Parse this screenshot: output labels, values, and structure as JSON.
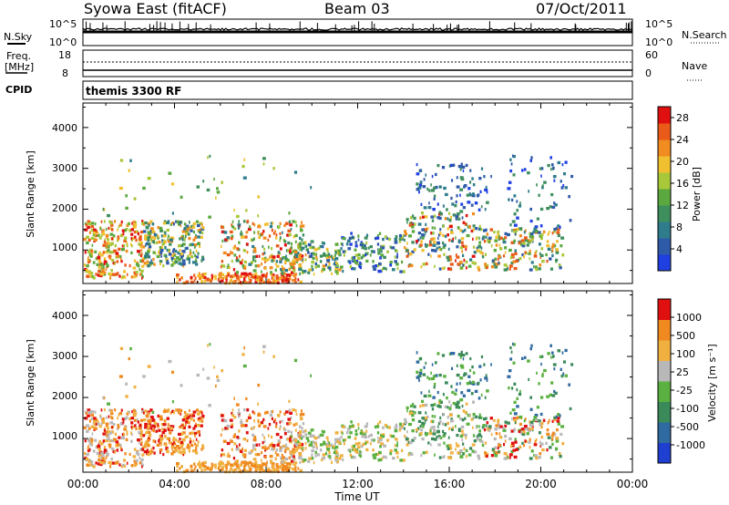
{
  "header": {
    "station": "Syowa East (fitACF)",
    "beam": "Beam 03",
    "date": "07/Oct/2011"
  },
  "side_labels": {
    "nsky": "N.Sky",
    "nsearch": "N.Search",
    "freq_line1": "Freq.",
    "freq_line2": "[MHz]",
    "nave": "Nave",
    "cpid": "CPID"
  },
  "noise_panel": {
    "tick_top": "10^5",
    "tick_bottom": "10^0",
    "tick_top_right": "10^5",
    "tick_bottom_right": "10^0"
  },
  "freq_panel": {
    "left_ticks": [
      "18",
      "8"
    ],
    "right_ticks": [
      "60",
      "0"
    ]
  },
  "cpid_panel": {
    "text": "themis 3300 RF"
  },
  "chart_data": [
    {
      "type": "heatmap",
      "title": "",
      "ylabel": "Slant Range [km]",
      "xlabel": "",
      "xlim": [
        0,
        24
      ],
      "ylim": [
        180,
        4600
      ],
      "yticks": [
        "1000",
        "2000",
        "3000",
        "4000"
      ],
      "colorbar": {
        "label": "Power [dB]",
        "ticks": [
          "4",
          "8",
          "12",
          "16",
          "20",
          "24",
          "28"
        ],
        "range": [
          0,
          30
        ],
        "colors": [
          "#1f3fe0",
          "#2f5aa8",
          "#2e7c8c",
          "#3f8f5e",
          "#5aa83e",
          "#a8c83a",
          "#f0c030",
          "#f08c20",
          "#ea5a18",
          "#e01010"
        ]
      }
    },
    {
      "type": "heatmap",
      "title": "",
      "ylabel": "Slant Range [km]",
      "xlabel": "Time UT",
      "xlim": [
        0,
        24
      ],
      "ylim": [
        180,
        4600
      ],
      "yticks": [
        "1000",
        "2000",
        "3000",
        "4000"
      ],
      "xticks": [
        "00:00",
        "04:00",
        "08:00",
        "12:00",
        "16:00",
        "20:00",
        "00:00"
      ],
      "colorbar": {
        "label": "Velocity [m s⁻¹]",
        "ticks": [
          "1000",
          "500",
          "100",
          "25",
          "-25",
          "-100",
          "-500",
          "-1000"
        ],
        "range": [
          -1000,
          1000
        ],
        "colors": [
          "#1f3fd0",
          "#2f6aa0",
          "#3a8a5a",
          "#5ab040",
          "#b8b8b8",
          "#f0b040",
          "#f08a20",
          "#e01010"
        ]
      }
    }
  ]
}
